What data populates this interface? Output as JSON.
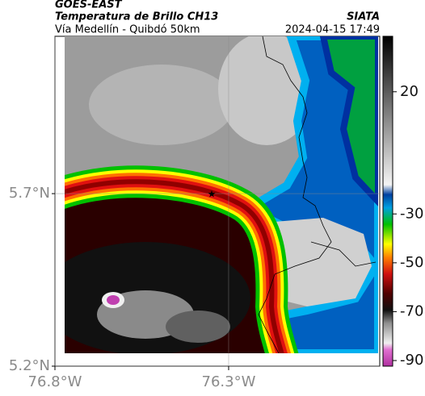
{
  "header": {
    "title": "GOES-EAST",
    "subtitle": "Temperatura de Brillo CH13",
    "route": "Vía Medellín - Quibdó 50km",
    "source": "SIATA",
    "timestamp": "2024-04-15 17:49"
  },
  "map": {
    "xlim": [
      -76.8,
      -75.865
    ],
    "ylim": [
      5.2,
      6.156
    ],
    "xticks": [
      {
        "value": -76.8,
        "label": "76.8°W"
      },
      {
        "value": -76.3,
        "label": "76.3°W"
      }
    ],
    "yticks": [
      {
        "value": 5.2,
        "label": "5.2°N"
      },
      {
        "value": 5.7,
        "label": "5.7°N"
      }
    ],
    "grid": true
  },
  "colorbar": {
    "lim": [
      -92.3,
      42.7
    ],
    "ticks": [
      20,
      -30,
      -50,
      -70,
      -90
    ]
  }
}
